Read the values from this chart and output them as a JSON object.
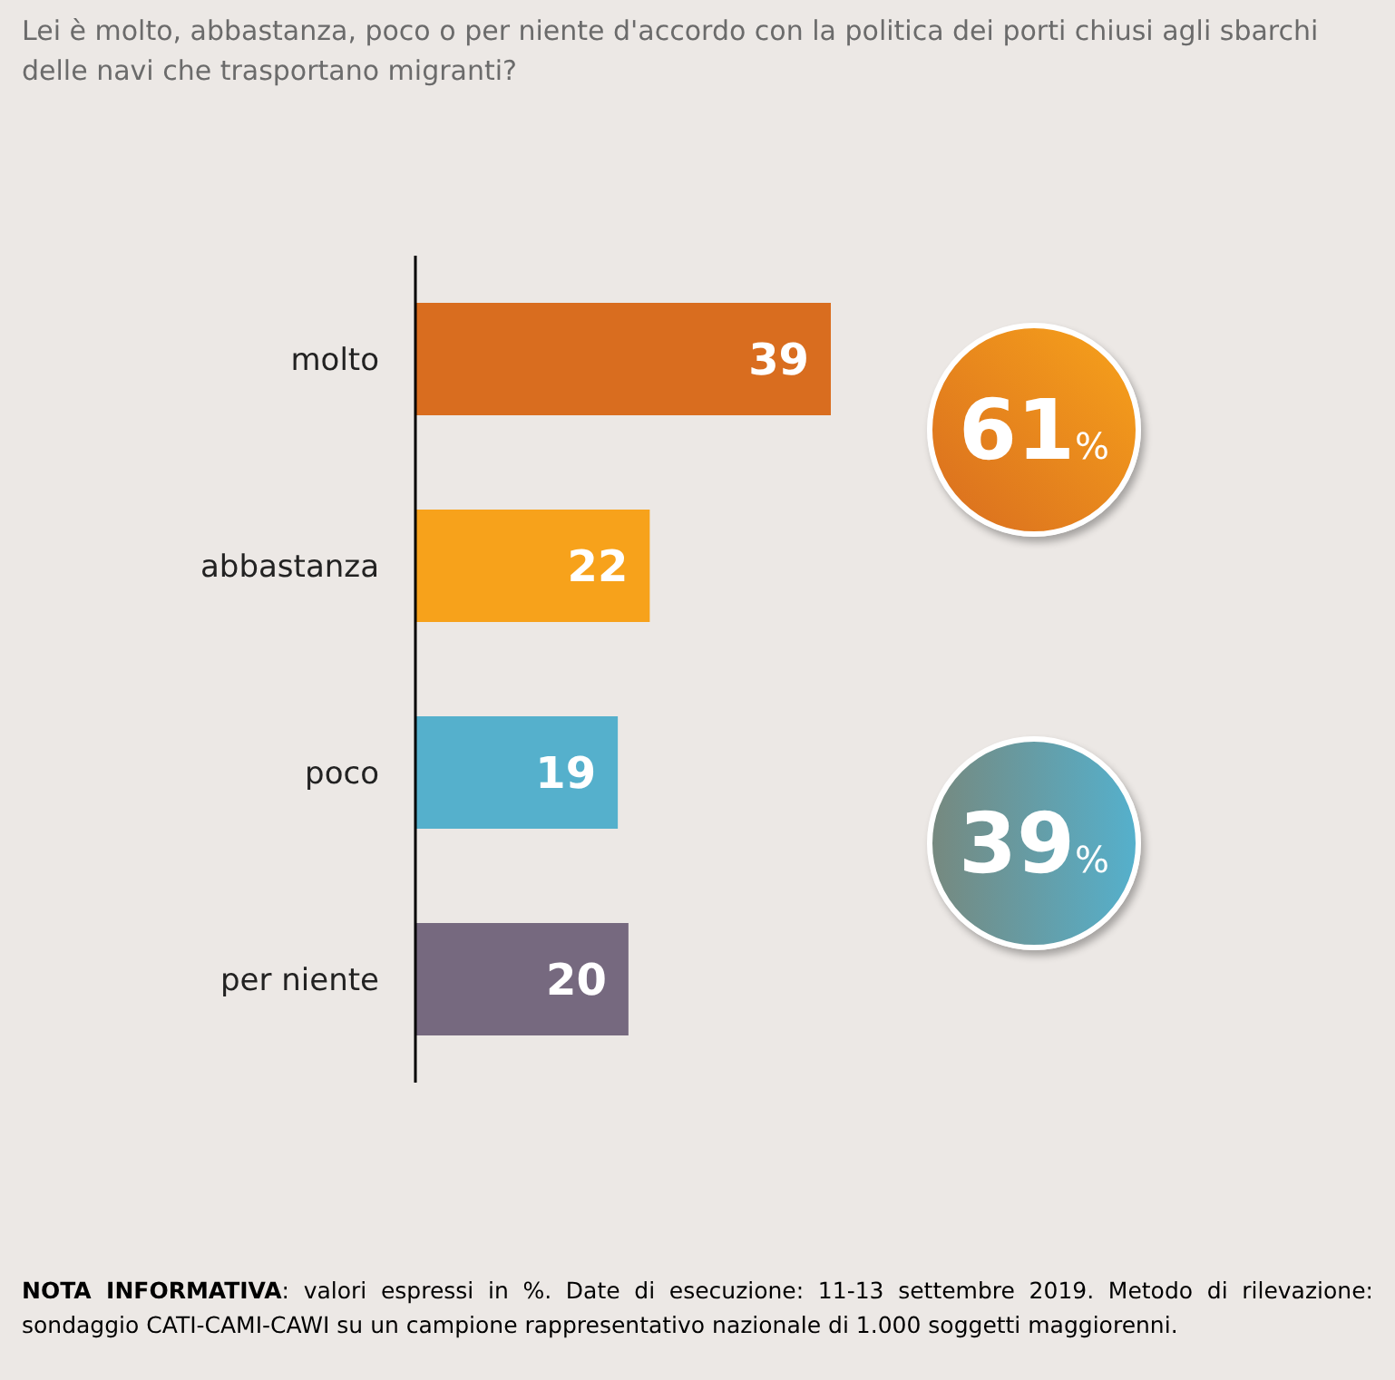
{
  "chart_data": {
    "type": "bar",
    "orientation": "horizontal",
    "title": "Lei è molto, abbastanza, poco o per niente d'accordo con la politica dei porti chiusi agli sbarchi delle navi che trasportano migranti?",
    "categories": [
      "molto",
      "abbastanza",
      "poco",
      "per niente"
    ],
    "values": [
      39,
      22,
      19,
      20
    ],
    "colors": [
      "#d96d1f",
      "#f7a21b",
      "#55b0cc",
      "#76697f"
    ],
    "data_labels": true,
    "legend": false,
    "grid": false,
    "annotations": [
      "61%",
      "39%",
      "NOTA INFORMATIVA: valori espressi in %. Date di esecuzione: 11-13 settembre 2019. Metodo di rilevazione: sondaggio CATI-CAMI-CAWI su un campione rappresentativo nazionale di 1.000 soggetti maggiorenni."
    ]
  }
}
